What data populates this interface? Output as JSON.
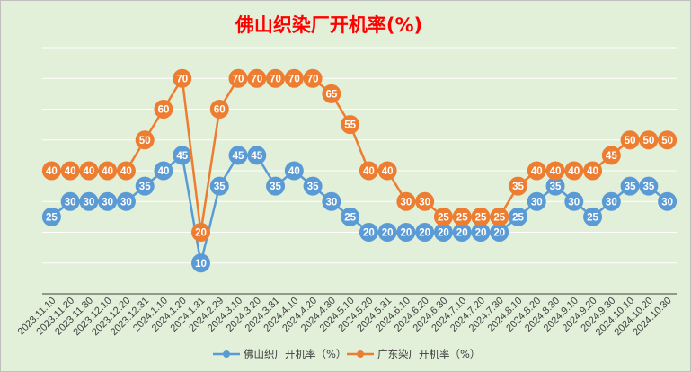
{
  "chart_data": {
    "type": "line",
    "title": "佛山织染厂开机率(%)",
    "categories": [
      "2023.11.10",
      "2023.11.20",
      "2023.11.30",
      "2023.12.10",
      "2023.12.20",
      "2023.12.31",
      "2024.1.10",
      "2024.1.20",
      "2024.1.31",
      "2024.2.29",
      "2024.3.10",
      "2024.3.20",
      "2024.3.31",
      "2024.4.10",
      "2024.4.20",
      "2024.4.30",
      "2024.5.10",
      "2024.5.20",
      "2024.5.31",
      "2024.6.10",
      "2024.6.20",
      "2024.6.30",
      "2024.7.10",
      "2024.7.20",
      "2024.7.30",
      "2024.8.10",
      "2024.8.20",
      "2024.8.30",
      "2024.9.10",
      "2024.9.20",
      "2024.9.30",
      "2024.10.10",
      "2024.10.20",
      "2024.10.30"
    ],
    "series": [
      {
        "name": "佛山织厂开机率（%）",
        "color": "#5b9bd5",
        "values": [
          25,
          30,
          30,
          30,
          30,
          35,
          40,
          45,
          10,
          35,
          45,
          45,
          35,
          40,
          35,
          30,
          25,
          20,
          20,
          20,
          20,
          20,
          20,
          20,
          20,
          25,
          30,
          35,
          30,
          25,
          30,
          35,
          35,
          30
        ]
      },
      {
        "name": "广东染厂开机率（%）",
        "color": "#ed7d31",
        "values": [
          40,
          40,
          40,
          40,
          40,
          50,
          60,
          70,
          20,
          60,
          70,
          70,
          70,
          70,
          70,
          65,
          55,
          40,
          40,
          30,
          30,
          25,
          25,
          25,
          25,
          35,
          40,
          40,
          40,
          40,
          45,
          50,
          50,
          50
        ]
      }
    ],
    "ylim": [
      0,
      80
    ],
    "grid": true,
    "legend": "bottom"
  }
}
